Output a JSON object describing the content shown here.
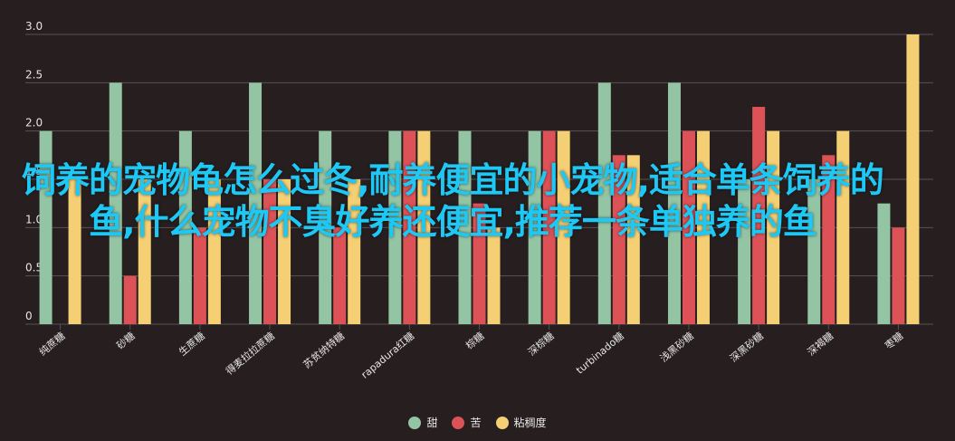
{
  "chart_data": {
    "type": "bar",
    "categories": [
      "纯蔗糖",
      "砂糖",
      "生蔗糖",
      "得麦拉拉蔗糖",
      "苏贫纳特糖",
      "rapadura红糖",
      "棕糖",
      "深棕糖",
      "turbinado糖",
      "浅黑砂糖",
      "深黑砂糖",
      "深褐糖",
      "枣糖"
    ],
    "series": [
      {
        "name": "甜",
        "color": "#93c4a3",
        "values": [
          2.0,
          2.5,
          2.0,
          2.5,
          2.0,
          2.0,
          2.0,
          2.0,
          2.5,
          2.5,
          1.5,
          1.5,
          1.25
        ]
      },
      {
        "name": "苦",
        "color": "#dd5256",
        "values": [
          0,
          0.5,
          1.0,
          1.5,
          1.0,
          2.0,
          1.25,
          2.0,
          1.75,
          2.0,
          2.25,
          1.75,
          1.0
        ]
      },
      {
        "name": "粘稠度",
        "color": "#f4cf73",
        "values": [
          1.5,
          1.5,
          1.5,
          1.5,
          1.5,
          2.0,
          1.0,
          2.0,
          1.75,
          2.0,
          2.0,
          2.0,
          3.0
        ]
      }
    ],
    "y_ticks": [
      "3.0",
      "2.5",
      "2.0",
      "1.5",
      "1.0",
      "0.5",
      "0"
    ],
    "ylim": [
      0,
      3
    ],
    "grid": true,
    "legend": "bottom-center"
  },
  "overlay_text": "饲养的宠物龟怎么过冬,耐养便宜的小宠物,适合单条饲养的鱼,什么宠物不臭好养还便宜,推荐一条单独养的鱼"
}
